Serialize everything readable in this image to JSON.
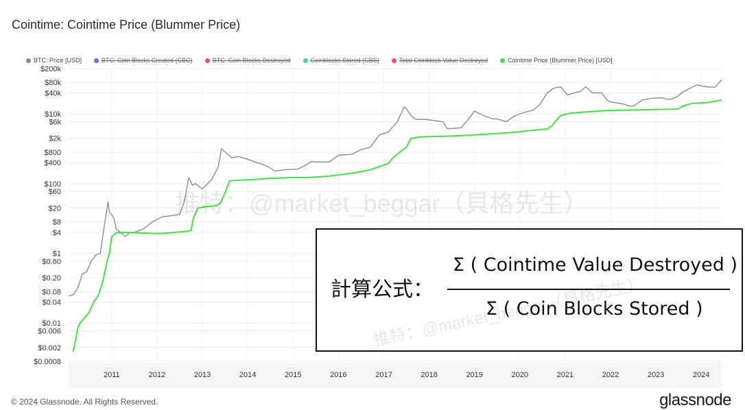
{
  "header": {
    "title": "Cointime: Cointime Price (Blummer Price)"
  },
  "legend": [
    {
      "label": "BTC: Price [USD]",
      "color": "#8c8c8c",
      "active": true
    },
    {
      "label": "BTC: Coin Blocks Created (CBC)",
      "color": "#7b68ee",
      "active": false
    },
    {
      "label": "BTC: Coin Blocks Destroyed",
      "color": "#e0556b",
      "active": false
    },
    {
      "label": "Coinblocks Stored (CBS)",
      "color": "#5fcf9a",
      "active": false
    },
    {
      "label": "Total Coinblock Value Destroyed",
      "color": "#e0556b",
      "active": false
    },
    {
      "label": "Cointime Price (Blummer Price) [USD]",
      "color": "#45e045",
      "active": true
    }
  ],
  "watermark": "推特：@market_beggar（貝格先生）",
  "formula": {
    "label": "計算公式：",
    "numerator": "Σ ( Cointime Value Destroyed )",
    "denominator": "Σ ( Coin Blocks Stored )",
    "watermark": "推特：@market_beggar（貝格先生）"
  },
  "footer": {
    "copyright": "© 2024 Glassnode. All Rights Reserved.",
    "brand": "glassnode"
  },
  "chart_data": {
    "type": "line",
    "title": "Cointime: Cointime Price (Blummer Price)",
    "y_scale": "log",
    "ylim": [
      0.0008,
      200000
    ],
    "y_ticks": [
      "$200k",
      "$80k",
      "$40k",
      "$10k",
      "$6k",
      "$2k",
      "$800",
      "$400",
      "$100",
      "$60",
      "$20",
      "$8",
      "$4",
      "$1",
      "$0.60",
      "$0.20",
      "$0.08",
      "$0.04",
      "$0.01",
      "$0.006",
      "$0.002",
      "$0.0008"
    ],
    "y_tick_values": [
      200000,
      80000,
      40000,
      10000,
      6000,
      2000,
      800,
      400,
      100,
      60,
      20,
      8,
      4,
      1,
      0.6,
      0.2,
      0.08,
      0.04,
      0.01,
      0.006,
      0.002,
      0.0008
    ],
    "x_ticks": [
      "2011",
      "2012",
      "2013",
      "2014",
      "2015",
      "2016",
      "2017",
      "2018",
      "2019",
      "2020",
      "2021",
      "2022",
      "2023",
      "2024"
    ],
    "x_tick_values": [
      2011,
      2012,
      2013,
      2014,
      2015,
      2016,
      2017,
      2018,
      2019,
      2020,
      2021,
      2022,
      2023,
      2024
    ],
    "xlim": [
      2010.55,
      2024.95
    ],
    "grid": true,
    "legend_position": "top",
    "series": [
      {
        "name": "BTC: Price [USD]",
        "color": "#8c8c8c",
        "x": [
          2010.55,
          2010.65,
          2010.75,
          2010.85,
          2010.95,
          2011.05,
          2011.15,
          2011.25,
          2011.35,
          2011.42,
          2011.45,
          2011.5,
          2011.55,
          2011.6,
          2011.7,
          2011.8,
          2011.9,
          2012.0,
          2012.2,
          2012.4,
          2012.6,
          2012.8,
          2013.0,
          2013.1,
          2013.2,
          2013.28,
          2013.35,
          2013.5,
          2013.7,
          2013.85,
          2013.92,
          2014.0,
          2014.15,
          2014.3,
          2014.5,
          2014.7,
          2014.85,
          2015.0,
          2015.1,
          2015.3,
          2015.6,
          2015.8,
          2015.9,
          2016.0,
          2016.3,
          2016.5,
          2016.8,
          2017.0,
          2017.2,
          2017.4,
          2017.6,
          2017.8,
          2017.95,
          2018.0,
          2018.1,
          2018.2,
          2018.4,
          2018.6,
          2018.8,
          2018.9,
          2019.0,
          2019.2,
          2019.4,
          2019.5,
          2019.7,
          2019.9,
          2020.0,
          2020.2,
          2020.4,
          2020.6,
          2020.8,
          2020.95,
          2021.1,
          2021.25,
          2021.4,
          2021.55,
          2021.7,
          2021.85,
          2021.95,
          2022.1,
          2022.3,
          2022.45,
          2022.6,
          2022.8,
          2022.9,
          2023.0,
          2023.2,
          2023.4,
          2023.6,
          2023.8,
          2023.95,
          2024.1,
          2024.2,
          2024.4,
          2024.6,
          2024.8,
          2024.95
        ],
        "y": [
          0.06,
          0.065,
          0.1,
          0.25,
          0.3,
          0.6,
          0.9,
          1.0,
          8,
          30,
          15,
          13,
          10,
          5,
          4,
          3,
          4,
          4,
          5,
          8,
          11,
          12,
          13,
          30,
          150,
          90,
          100,
          70,
          130,
          300,
          1000,
          800,
          550,
          600,
          500,
          400,
          350,
          280,
          230,
          250,
          260,
          350,
          430,
          420,
          420,
          650,
          700,
          950,
          1100,
          2500,
          3000,
          6000,
          16000,
          14000,
          9000,
          7000,
          7000,
          6500,
          6000,
          3800,
          3800,
          4000,
          8000,
          12000,
          9000,
          7200,
          7200,
          6000,
          9000,
          11000,
          13000,
          19000,
          40000,
          55000,
          60000,
          35000,
          40000,
          45000,
          60000,
          40000,
          40000,
          23000,
          21000,
          19000,
          17000,
          16500,
          25000,
          28000,
          29000,
          26000,
          30000,
          43000,
          50000,
          68000,
          60000,
          58000,
          95000
        ]
      },
      {
        "name": "Cointime Price (Blummer Price) [USD]",
        "color": "#45e045",
        "x": [
          2010.65,
          2010.7,
          2010.75,
          2010.8,
          2010.9,
          2011.0,
          2011.1,
          2011.2,
          2011.3,
          2011.35,
          2011.4,
          2011.45,
          2011.5,
          2011.6,
          2011.8,
          2012.0,
          2012.3,
          2012.5,
          2012.7,
          2012.9,
          2013.1,
          2013.25,
          2013.3,
          2013.4,
          2013.6,
          2013.8,
          2013.9,
          2014.0,
          2014.1,
          2014.3,
          2014.6,
          2014.9,
          2015.2,
          2015.5,
          2015.8,
          2016.0,
          2016.3,
          2016.6,
          2016.9,
          2017.2,
          2017.4,
          2017.6,
          2017.7,
          2017.8,
          2017.9,
          2018.0,
          2018.05,
          2018.1,
          2018.3,
          2018.6,
          2018.9,
          2019.2,
          2019.5,
          2019.8,
          2020.1,
          2020.4,
          2020.7,
          2020.9,
          2021.1,
          2021.2,
          2021.3,
          2021.4,
          2021.6,
          2021.8,
          2022.0,
          2022.2,
          2022.4,
          2022.7,
          2023.0,
          2023.3,
          2023.6,
          2023.9,
          2024.0,
          2024.1,
          2024.3,
          2024.6,
          2024.95
        ],
        "y": [
          0.0015,
          0.003,
          0.007,
          0.01,
          0.014,
          0.02,
          0.04,
          0.06,
          0.15,
          0.3,
          0.6,
          1.0,
          3.0,
          3.9,
          4.0,
          3.9,
          3.8,
          3.7,
          3.8,
          4.0,
          4.2,
          4.5,
          10,
          20,
          22,
          23,
          28,
          55,
          120,
          125,
          130,
          140,
          145,
          150,
          150,
          155,
          165,
          185,
          210,
          250,
          310,
          380,
          550,
          700,
          900,
          1100,
          1500,
          2000,
          2200,
          2250,
          2300,
          2400,
          2500,
          2650,
          2800,
          3000,
          3300,
          3500,
          3700,
          4500,
          6500,
          9000,
          10500,
          11000,
          11500,
          12000,
          12500,
          12800,
          13000,
          13200,
          13500,
          13700,
          14000,
          17000,
          20000,
          21000,
          25000
        ]
      }
    ]
  }
}
